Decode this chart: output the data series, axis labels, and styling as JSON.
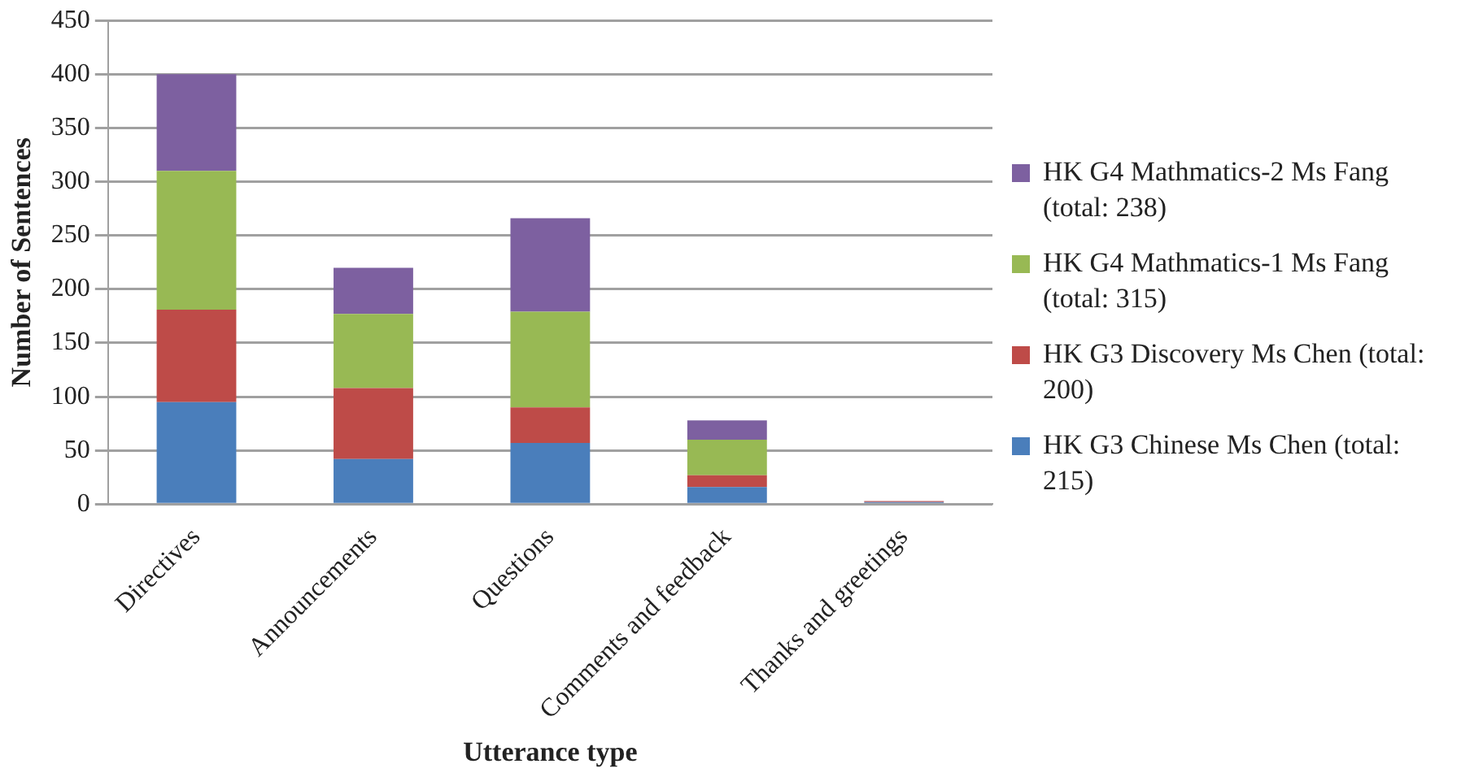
{
  "chart_data": {
    "type": "bar",
    "stacked": true,
    "xlabel": "Utterance type",
    "ylabel": "Number of Sentences",
    "categories": [
      "Directives",
      "Announcements",
      "Questions",
      "Comments and feedback",
      "Thanks and greetings"
    ],
    "series": [
      {
        "name": "HK G3 Chinese Ms Chen (total: 215)",
        "color": "#4a7ebb",
        "values": [
          95,
          42,
          57,
          16,
          2
        ]
      },
      {
        "name": "HK G3 Discovery Ms Chen (total: 200)",
        "color": "#be4b48",
        "values": [
          86,
          66,
          33,
          11,
          1
        ]
      },
      {
        "name": "HK G4 Mathmatics-1 Ms Fang (total: 315)",
        "color": "#98b954",
        "values": [
          129,
          69,
          89,
          33,
          0
        ]
      },
      {
        "name": "HK G4 Mathmatics-2 Ms Fang (total: 238)",
        "color": "#7d60a0",
        "values": [
          90,
          43,
          87,
          18,
          0
        ]
      }
    ],
    "ylim": [
      0,
      450
    ],
    "yticks": [
      0,
      50,
      100,
      150,
      200,
      250,
      300,
      350,
      400,
      450
    ],
    "grid": "y",
    "legend": "right"
  }
}
